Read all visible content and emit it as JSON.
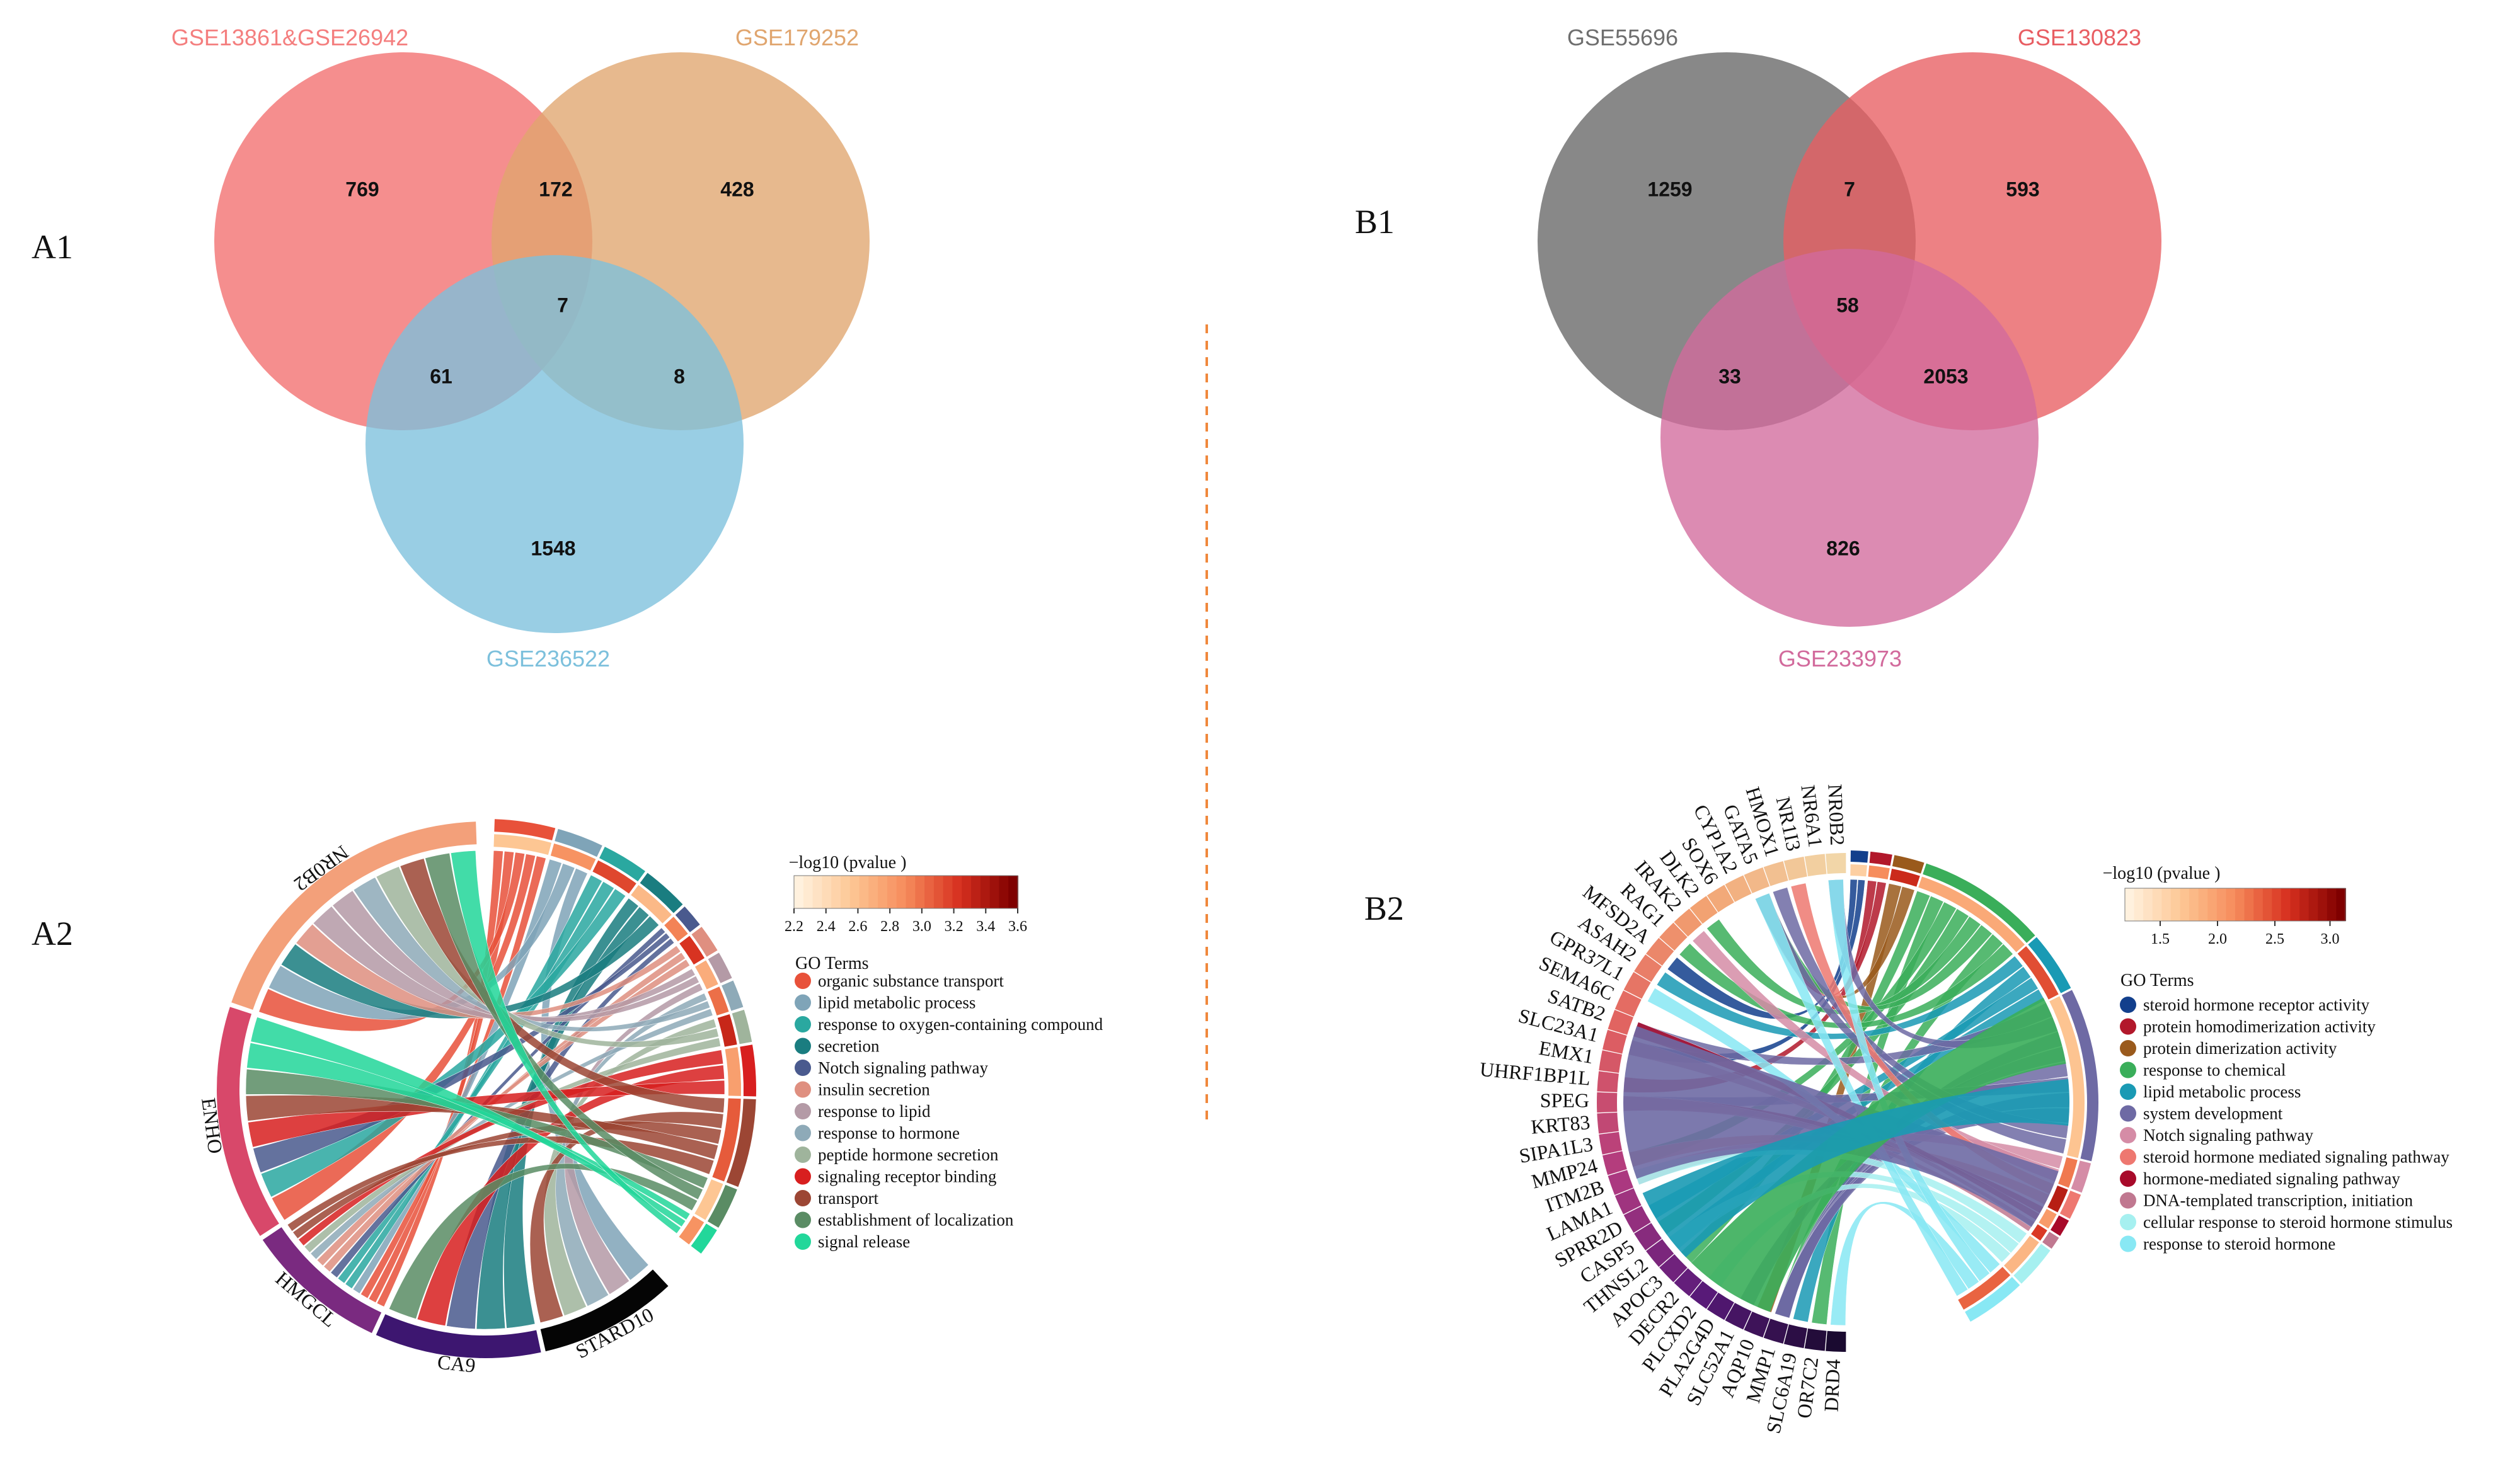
{
  "panels": {
    "A1": "A1",
    "A2": "A2",
    "B1": "B1",
    "B2": "B2"
  },
  "venn_A1": {
    "sets": [
      {
        "name": "GSE13861&GSE26942",
        "color": "#f47e7e"
      },
      {
        "name": "GSE179252",
        "color": "#e0a56e"
      },
      {
        "name": "GSE236522",
        "color": "#7cc0dc"
      }
    ],
    "regions": {
      "only1": "769",
      "only2": "428",
      "only3": "1548",
      "s12": "172",
      "s13": "61",
      "s23": "8",
      "s123": "7"
    }
  },
  "venn_B1": {
    "sets": [
      {
        "name": "GSE55696",
        "color": "#6e6e6e"
      },
      {
        "name": "GSE130823",
        "color": "#e85d62"
      },
      {
        "name": "GSE233973",
        "color": "#d26a9c"
      }
    ],
    "regions": {
      "only1": "1259",
      "only2": "593",
      "only3": "826",
      "s12": "7",
      "s13": "33",
      "s23": "2053",
      "s123": "58"
    }
  },
  "chord_A2": {
    "genes": [
      "NR0B2",
      "ENHO",
      "HMGCL",
      "CA9",
      "STARD10"
    ],
    "gene_colors": [
      "#f3a07a",
      "#d8486a",
      "#7a2a80",
      "#3d1670",
      "#050505"
    ],
    "colorbar": {
      "title": "−log10 (pvalue )",
      "ticks": [
        "2.2",
        "2.4",
        "2.6",
        "2.8",
        "3.0",
        "3.2",
        "3.4",
        "3.6"
      ]
    },
    "legend_title": "GO Terms",
    "terms": [
      {
        "label": "organic substance transport",
        "color": "#e8513a"
      },
      {
        "label": "lipid metabolic process",
        "color": "#7fa4b8"
      },
      {
        "label": "response to oxygen-containing compound",
        "color": "#2aa8a0"
      },
      {
        "label": "secretion",
        "color": "#1a7d80"
      },
      {
        "label": "Notch signaling pathway",
        "color": "#4a5a8e"
      },
      {
        "label": "insulin secretion",
        "color": "#df8f80"
      },
      {
        "label": "response to lipid",
        "color": "#b49aa6"
      },
      {
        "label": "response to hormone",
        "color": "#8eaab8"
      },
      {
        "label": "peptide hormone secretion",
        "color": "#9fb49c"
      },
      {
        "label": "signaling receptor binding",
        "color": "#d81f1f"
      },
      {
        "label": "transport",
        "color": "#9c4634"
      },
      {
        "label": "establishment of localization",
        "color": "#5a8c64"
      },
      {
        "label": "signal release",
        "color": "#22d79a"
      }
    ]
  },
  "chord_B2": {
    "genes": [
      "NR0B2",
      "NR6A1",
      "NR1I3",
      "HMOX1",
      "GATA5",
      "CYP1A2",
      "SOX6",
      "DLK2",
      "IRAK2",
      "RAG1",
      "MFSD2A",
      "ASAH2",
      "GPR37L1",
      "SEMA6C",
      "SATB2",
      "SLC23A1",
      "EMX1",
      "UHRF1BP1L",
      "SPEG",
      "KRT83",
      "SIPA1L3",
      "MMP24",
      "ITM2B",
      "LAMA1",
      "SPRR2D",
      "CASP5",
      "THNSL2",
      "APOC3",
      "DECR2",
      "PLCXD2",
      "PLA2G4D",
      "SLC52A1",
      "AQP10",
      "MMP1",
      "SLC6A19",
      "OR7C2",
      "DRD4"
    ],
    "colorbar": {
      "title": "−log10 (pvalue )",
      "ticks": [
        "1.5",
        "2.0",
        "2.5",
        "3.0"
      ]
    },
    "legend_title": "GO Terms",
    "terms": [
      {
        "label": "steroid hormone receptor activity",
        "color": "#123f8c"
      },
      {
        "label": "protein homodimerization activity",
        "color": "#b2182b"
      },
      {
        "label": "protein dimerization activity",
        "color": "#9a5a1c"
      },
      {
        "label": "response to chemical",
        "color": "#3aae5a"
      },
      {
        "label": "lipid metabolic process",
        "color": "#1a9ab4"
      },
      {
        "label": "system development",
        "color": "#6e6aa4"
      },
      {
        "label": "Notch signaling pathway",
        "color": "#d58ca6"
      },
      {
        "label": "steroid hormone mediated signaling pathway",
        "color": "#ee7870"
      },
      {
        "label": "hormone-mediated signaling pathway",
        "color": "#a80a2a"
      },
      {
        "label": "DNA-templated transcription, initiation",
        "color": "#c07890"
      },
      {
        "label": "cellular response to steroid hormone stimulus",
        "color": "#a6f0f0"
      },
      {
        "label": "response to steroid hormone",
        "color": "#88e8f4"
      }
    ]
  }
}
